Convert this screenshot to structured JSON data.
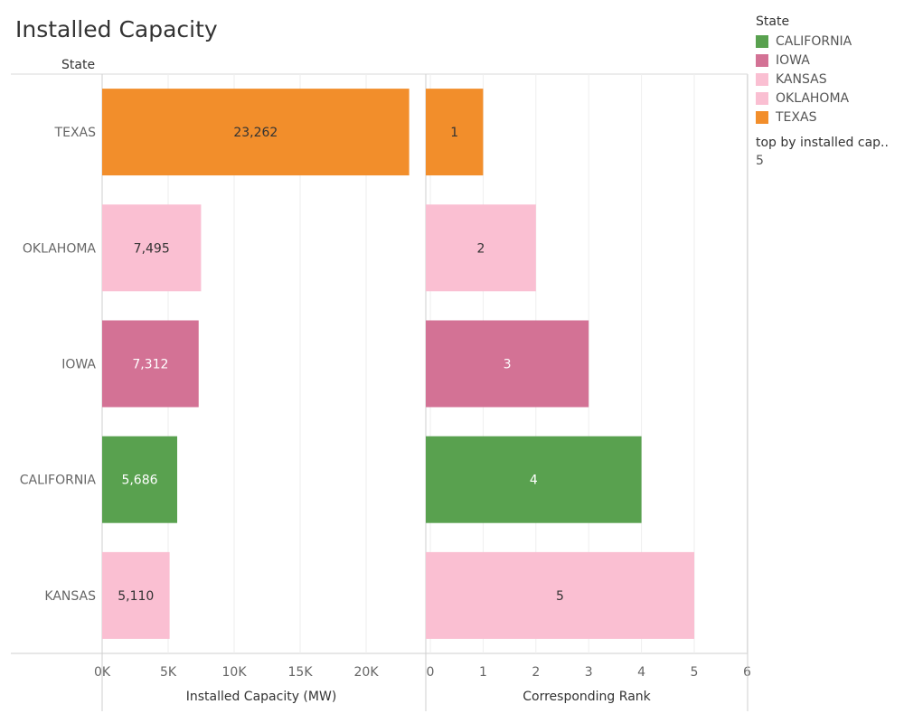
{
  "title": "Installed Capacity",
  "row_header": "State",
  "legend": {
    "title": "State",
    "items": [
      {
        "label": "CALIFORNIA",
        "color": "#59a14f"
      },
      {
        "label": "IOWA",
        "color": "#d37295"
      },
      {
        "label": "KANSAS",
        "color": "#fabfd2"
      },
      {
        "label": "OKLAHOMA",
        "color": "#fabfd2"
      },
      {
        "label": "TEXAS",
        "color": "#f28e2b"
      }
    ]
  },
  "parameter": {
    "label": "top by installed cap..",
    "value": "5"
  },
  "chart_data": [
    {
      "type": "bar",
      "orientation": "horizontal",
      "categories": [
        "TEXAS",
        "OKLAHOMA",
        "IOWA",
        "CALIFORNIA",
        "KANSAS"
      ],
      "values": [
        23262,
        7495,
        7312,
        5686,
        5110
      ],
      "value_labels": [
        "23,262",
        "7,495",
        "7,312",
        "5,686",
        "5,110"
      ],
      "colors": [
        "#f28e2b",
        "#fabfd2",
        "#d37295",
        "#59a14f",
        "#fabfd2"
      ],
      "label_colors": [
        "#333333",
        "#333333",
        "#ffffff",
        "#ffffff",
        "#333333"
      ],
      "xlabel": "Installed Capacity (MW)",
      "xlim": [
        0,
        24500
      ],
      "xticks": [
        0,
        5000,
        10000,
        15000,
        20000
      ],
      "xtick_labels": [
        "0K",
        "5K",
        "10K",
        "15K",
        "20K"
      ],
      "grid": true
    },
    {
      "type": "bar",
      "orientation": "horizontal",
      "categories": [
        "TEXAS",
        "OKLAHOMA",
        "IOWA",
        "CALIFORNIA",
        "KANSAS"
      ],
      "values": [
        1,
        2,
        3,
        4,
        5
      ],
      "value_labels": [
        "1",
        "2",
        "3",
        "4",
        "5"
      ],
      "colors": [
        "#f28e2b",
        "#fabfd2",
        "#d37295",
        "#59a14f",
        "#fabfd2"
      ],
      "label_colors": [
        "#333333",
        "#333333",
        "#ffffff",
        "#ffffff",
        "#333333"
      ],
      "xlabel": "Corresponding Rank",
      "xlim": [
        0,
        6
      ],
      "xticks": [
        0,
        1,
        2,
        3,
        4,
        5,
        6
      ],
      "xtick_labels": [
        "0",
        "1",
        "2",
        "3",
        "4",
        "5",
        "6"
      ],
      "grid": true
    }
  ]
}
